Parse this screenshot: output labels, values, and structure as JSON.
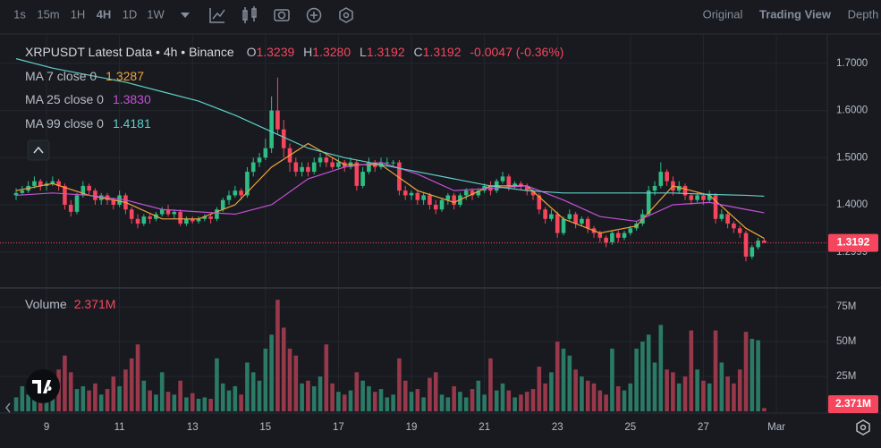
{
  "toolbar": {
    "intervals": [
      "1s",
      "15m",
      "1H",
      "4H",
      "1D",
      "1W"
    ],
    "active_interval": 3,
    "views": [
      "Original",
      "Trading View",
      "Depth"
    ],
    "active_view": 1
  },
  "chart_data": {
    "type": "candlestick",
    "header": {
      "symbol": "XRPUSDT Latest Data • 4h • Binance",
      "fields": [
        {
          "key": "O",
          "value": "1.3239"
        },
        {
          "key": "H",
          "value": "1.3280"
        },
        {
          "key": "L",
          "value": "1.3192"
        },
        {
          "key": "C",
          "value": "1.3192"
        }
      ],
      "change": "-0.0047 (-0.36%)"
    },
    "up_color": "#2ebd85",
    "down_color": "#f6465d",
    "volume_up_color": "#2a7a66",
    "volume_down_color": "#97394a",
    "xlim": [
      -2.65,
      133.38
    ],
    "ylim": [
      1.2235,
      1.7586
    ],
    "volume_ylim": [
      0,
      88.5
    ],
    "xticks": [
      {
        "value": 5,
        "label": "9"
      },
      {
        "value": 17,
        "label": "11"
      },
      {
        "value": 29,
        "label": "13"
      },
      {
        "value": 41,
        "label": "15"
      },
      {
        "value": 53,
        "label": "17"
      },
      {
        "value": 65,
        "label": "19"
      },
      {
        "value": 77,
        "label": "21"
      },
      {
        "value": 89,
        "label": "23"
      },
      {
        "value": 101,
        "label": "25"
      },
      {
        "value": 113,
        "label": "27"
      },
      {
        "value": 125,
        "label": "Mar"
      }
    ],
    "yticks": [
      {
        "value": 1.7,
        "label": "1.7000"
      },
      {
        "value": 1.6,
        "label": "1.6000"
      },
      {
        "value": 1.5,
        "label": "1.5000"
      },
      {
        "value": 1.4,
        "label": "1.4000"
      },
      1.2999
    ],
    "volume_yticks": [
      {
        "value": 25,
        "label": "25M"
      },
      {
        "value": 50,
        "label": "50M"
      },
      {
        "value": 75,
        "label": "75M"
      }
    ],
    "volume_title": "Volume",
    "last_volume_label": "2.371M",
    "candles": [
      [
        1.42,
        1.435,
        1.41,
        1.425,
        10
      ],
      [
        1.425,
        1.44,
        1.42,
        1.43,
        18
      ],
      [
        1.43,
        1.45,
        1.425,
        1.44,
        12
      ],
      [
        1.44,
        1.46,
        1.435,
        1.45,
        20
      ],
      [
        1.45,
        1.455,
        1.43,
        1.44,
        14
      ],
      [
        1.44,
        1.45,
        1.43,
        1.445,
        15
      ],
      [
        1.445,
        1.46,
        1.44,
        1.45,
        12
      ],
      [
        1.45,
        1.455,
        1.43,
        1.44,
        30
      ],
      [
        1.44,
        1.445,
        1.39,
        1.4,
        40
      ],
      [
        1.4,
        1.41,
        1.375,
        1.385,
        28
      ],
      [
        1.385,
        1.425,
        1.38,
        1.42,
        16
      ],
      [
        1.42,
        1.45,
        1.415,
        1.44,
        18
      ],
      [
        1.44,
        1.445,
        1.42,
        1.43,
        15
      ],
      [
        1.43,
        1.435,
        1.4,
        1.41,
        20
      ],
      [
        1.41,
        1.425,
        1.4,
        1.42,
        12
      ],
      [
        1.42,
        1.425,
        1.4,
        1.41,
        16
      ],
      [
        1.41,
        1.415,
        1.39,
        1.4,
        25
      ],
      [
        1.4,
        1.43,
        1.395,
        1.42,
        18
      ],
      [
        1.42,
        1.425,
        1.38,
        1.39,
        30
      ],
      [
        1.39,
        1.395,
        1.36,
        1.37,
        38
      ],
      [
        1.37,
        1.38,
        1.35,
        1.36,
        48
      ],
      [
        1.36,
        1.38,
        1.355,
        1.375,
        22
      ],
      [
        1.375,
        1.38,
        1.36,
        1.37,
        15
      ],
      [
        1.37,
        1.385,
        1.365,
        1.38,
        12
      ],
      [
        1.38,
        1.395,
        1.375,
        1.39,
        28
      ],
      [
        1.39,
        1.4,
        1.375,
        1.38,
        14
      ],
      [
        1.38,
        1.39,
        1.37,
        1.385,
        12
      ],
      [
        1.385,
        1.39,
        1.355,
        1.36,
        22
      ],
      [
        1.36,
        1.375,
        1.355,
        1.37,
        10
      ],
      [
        1.37,
        1.375,
        1.36,
        1.365,
        13
      ],
      [
        1.365,
        1.375,
        1.36,
        1.37,
        9
      ],
      [
        1.37,
        1.38,
        1.365,
        1.375,
        10
      ],
      [
        1.375,
        1.38,
        1.36,
        1.37,
        9
      ],
      [
        1.37,
        1.395,
        1.365,
        1.39,
        38
      ],
      [
        1.39,
        1.415,
        1.385,
        1.41,
        20
      ],
      [
        1.41,
        1.43,
        1.4,
        1.42,
        15
      ],
      [
        1.42,
        1.44,
        1.415,
        1.43,
        18
      ],
      [
        1.43,
        1.435,
        1.41,
        1.42,
        12
      ],
      [
        1.42,
        1.48,
        1.415,
        1.47,
        35
      ],
      [
        1.47,
        1.5,
        1.46,
        1.49,
        28
      ],
      [
        1.49,
        1.51,
        1.48,
        1.5,
        22
      ],
      [
        1.5,
        1.54,
        1.495,
        1.52,
        45
      ],
      [
        1.52,
        1.63,
        1.51,
        1.6,
        55
      ],
      [
        1.6,
        1.67,
        1.55,
        1.56,
        80
      ],
      [
        1.56,
        1.58,
        1.5,
        1.52,
        60
      ],
      [
        1.52,
        1.53,
        1.47,
        1.49,
        45
      ],
      [
        1.49,
        1.5,
        1.46,
        1.47,
        40
      ],
      [
        1.47,
        1.49,
        1.46,
        1.48,
        20
      ],
      [
        1.48,
        1.49,
        1.46,
        1.47,
        22
      ],
      [
        1.47,
        1.5,
        1.465,
        1.49,
        18
      ],
      [
        1.49,
        1.51,
        1.48,
        1.5,
        25
      ],
      [
        1.5,
        1.505,
        1.48,
        1.49,
        48
      ],
      [
        1.49,
        1.5,
        1.475,
        1.48,
        20
      ],
      [
        1.48,
        1.5,
        1.475,
        1.49,
        14
      ],
      [
        1.49,
        1.495,
        1.47,
        1.48,
        12
      ],
      [
        1.48,
        1.5,
        1.475,
        1.49,
        15
      ],
      [
        1.49,
        1.495,
        1.43,
        1.44,
        28
      ],
      [
        1.44,
        1.48,
        1.435,
        1.47,
        22
      ],
      [
        1.47,
        1.5,
        1.465,
        1.49,
        18
      ],
      [
        1.49,
        1.495,
        1.47,
        1.48,
        14
      ],
      [
        1.48,
        1.5,
        1.475,
        1.49,
        16
      ],
      [
        1.49,
        1.5,
        1.48,
        1.49,
        10
      ],
      [
        1.49,
        1.495,
        1.48,
        1.49,
        12
      ],
      [
        1.49,
        1.495,
        1.42,
        1.43,
        38
      ],
      [
        1.43,
        1.44,
        1.41,
        1.42,
        22
      ],
      [
        1.42,
        1.43,
        1.41,
        1.425,
        14
      ],
      [
        1.425,
        1.43,
        1.4,
        1.41,
        16
      ],
      [
        1.41,
        1.425,
        1.4,
        1.42,
        10
      ],
      [
        1.42,
        1.425,
        1.39,
        1.4,
        24
      ],
      [
        1.4,
        1.41,
        1.38,
        1.39,
        28
      ],
      [
        1.39,
        1.415,
        1.385,
        1.41,
        12
      ],
      [
        1.41,
        1.425,
        1.4,
        1.42,
        10
      ],
      [
        1.42,
        1.425,
        1.39,
        1.4,
        18
      ],
      [
        1.4,
        1.425,
        1.395,
        1.42,
        14
      ],
      [
        1.42,
        1.435,
        1.41,
        1.43,
        10
      ],
      [
        1.43,
        1.435,
        1.41,
        1.42,
        16
      ],
      [
        1.42,
        1.435,
        1.415,
        1.43,
        22
      ],
      [
        1.43,
        1.445,
        1.425,
        1.44,
        12
      ],
      [
        1.44,
        1.45,
        1.42,
        1.43,
        38
      ],
      [
        1.43,
        1.455,
        1.425,
        1.45,
        15
      ],
      [
        1.45,
        1.47,
        1.445,
        1.46,
        20
      ],
      [
        1.46,
        1.465,
        1.43,
        1.44,
        15
      ],
      [
        1.44,
        1.45,
        1.435,
        1.445,
        10
      ],
      [
        1.445,
        1.45,
        1.43,
        1.44,
        12
      ],
      [
        1.44,
        1.445,
        1.42,
        1.43,
        14
      ],
      [
        1.43,
        1.435,
        1.41,
        1.42,
        16
      ],
      [
        1.42,
        1.425,
        1.38,
        1.39,
        32
      ],
      [
        1.39,
        1.395,
        1.36,
        1.37,
        20
      ],
      [
        1.37,
        1.39,
        1.365,
        1.38,
        28
      ],
      [
        1.38,
        1.385,
        1.33,
        1.34,
        50
      ],
      [
        1.34,
        1.375,
        1.335,
        1.37,
        45
      ],
      [
        1.37,
        1.39,
        1.365,
        1.38,
        40
      ],
      [
        1.38,
        1.385,
        1.35,
        1.36,
        30
      ],
      [
        1.36,
        1.375,
        1.355,
        1.37,
        25
      ],
      [
        1.37,
        1.375,
        1.34,
        1.35,
        22
      ],
      [
        1.35,
        1.355,
        1.33,
        1.34,
        20
      ],
      [
        1.34,
        1.345,
        1.32,
        1.33,
        15
      ],
      [
        1.33,
        1.335,
        1.31,
        1.32,
        12
      ],
      [
        1.32,
        1.345,
        1.315,
        1.34,
        45
      ],
      [
        1.34,
        1.345,
        1.32,
        1.33,
        18
      ],
      [
        1.33,
        1.345,
        1.325,
        1.34,
        15
      ],
      [
        1.34,
        1.355,
        1.335,
        1.35,
        20
      ],
      [
        1.35,
        1.365,
        1.345,
        1.36,
        45
      ],
      [
        1.36,
        1.39,
        1.355,
        1.38,
        50
      ],
      [
        1.38,
        1.44,
        1.375,
        1.43,
        55
      ],
      [
        1.43,
        1.45,
        1.42,
        1.44,
        35
      ],
      [
        1.44,
        1.49,
        1.435,
        1.47,
        62
      ],
      [
        1.47,
        1.475,
        1.44,
        1.45,
        30
      ],
      [
        1.45,
        1.46,
        1.42,
        1.43,
        28
      ],
      [
        1.43,
        1.45,
        1.425,
        1.44,
        20
      ],
      [
        1.44,
        1.445,
        1.41,
        1.42,
        25
      ],
      [
        1.42,
        1.425,
        1.4,
        1.41,
        58
      ],
      [
        1.41,
        1.425,
        1.405,
        1.42,
        30
      ],
      [
        1.42,
        1.425,
        1.4,
        1.41,
        22
      ],
      [
        1.41,
        1.43,
        1.405,
        1.42,
        20
      ],
      [
        1.42,
        1.425,
        1.36,
        1.37,
        58
      ],
      [
        1.37,
        1.39,
        1.365,
        1.38,
        35
      ],
      [
        1.38,
        1.385,
        1.35,
        1.36,
        25
      ],
      [
        1.36,
        1.365,
        1.34,
        1.35,
        20
      ],
      [
        1.35,
        1.355,
        1.33,
        1.34,
        30
      ],
      [
        1.34,
        1.345,
        1.28,
        1.29,
        57
      ],
      [
        1.29,
        1.315,
        1.285,
        1.31,
        52
      ],
      [
        1.31,
        1.33,
        1.305,
        1.3239,
        51
      ],
      [
        1.3239,
        1.328,
        1.3192,
        1.3192,
        2.371
      ]
    ],
    "series": [
      {
        "name": "MA 7 close 0",
        "color": "#f0a33a",
        "last_label": "1.3287",
        "x": [
          0,
          6,
          12,
          18,
          24,
          30,
          36,
          42,
          48,
          54,
          60,
          66,
          72,
          78,
          84,
          90,
          96,
          102,
          108,
          114,
          120,
          123
        ],
        "values": [
          1.43,
          1.445,
          1.42,
          1.405,
          1.37,
          1.37,
          1.4,
          1.48,
          1.53,
          1.485,
          1.485,
          1.43,
          1.405,
          1.44,
          1.44,
          1.37,
          1.34,
          1.355,
          1.44,
          1.42,
          1.35,
          1.3287
        ]
      },
      {
        "name": "MA 25 close 0",
        "color": "#c451d6",
        "last_label": "1.3830",
        "x": [
          0,
          6,
          12,
          18,
          24,
          30,
          36,
          42,
          48,
          54,
          60,
          66,
          72,
          78,
          84,
          90,
          96,
          102,
          108,
          114,
          120,
          123
        ],
        "values": [
          1.42,
          1.425,
          1.42,
          1.41,
          1.39,
          1.385,
          1.38,
          1.4,
          1.455,
          1.48,
          1.49,
          1.465,
          1.43,
          1.435,
          1.44,
          1.41,
          1.375,
          1.365,
          1.4,
          1.405,
          1.39,
          1.383
        ]
      },
      {
        "name": "MA 99 close 0",
        "color": "#5fcfc7",
        "last_label": "1.4181",
        "x": [
          0,
          6,
          12,
          18,
          24,
          30,
          36,
          42,
          48,
          54,
          60,
          66,
          72,
          78,
          84,
          90,
          96,
          102,
          108,
          114,
          120,
          123
        ],
        "values": [
          1.71,
          1.69,
          1.675,
          1.66,
          1.64,
          1.62,
          1.59,
          1.555,
          1.52,
          1.5,
          1.485,
          1.47,
          1.455,
          1.44,
          1.43,
          1.425,
          1.425,
          1.425,
          1.425,
          1.422,
          1.42,
          1.4181
        ]
      }
    ]
  }
}
